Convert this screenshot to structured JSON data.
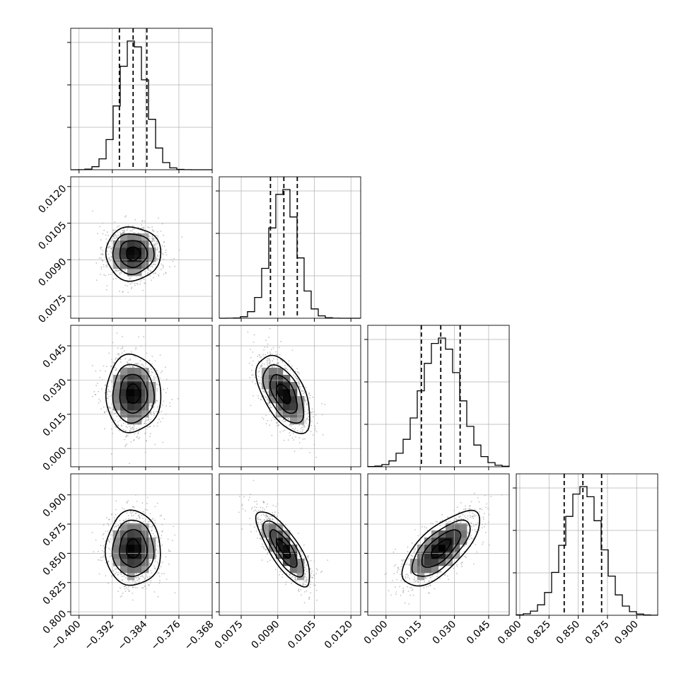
{
  "chart_data": {
    "type": "corner",
    "grid": true,
    "parameters": [
      {
        "mean": -0.387,
        "sd": 0.0033,
        "quantiles": [
          -0.3903,
          -0.387,
          -0.3837
        ],
        "range": [
          -0.402,
          -0.368
        ],
        "ticks": [
          -0.4,
          -0.392,
          -0.384,
          -0.376,
          -0.368
        ],
        "tick_labels": [
          "−0.400",
          "−0.392",
          "−0.384",
          "−0.376",
          "−0.368"
        ]
      },
      {
        "mean": 0.00925,
        "sd": 0.00055,
        "quantiles": [
          0.0087,
          0.00925,
          0.0098
        ],
        "range": [
          0.0066,
          0.0124
        ],
        "ticks": [
          0.0075,
          0.009,
          0.0105,
          0.012
        ],
        "tick_labels": [
          "0.0075",
          "0.0090",
          "0.0105",
          "0.0120"
        ]
      },
      {
        "mean": 0.024,
        "sd": 0.0085,
        "quantiles": [
          0.0155,
          0.024,
          0.0325
        ],
        "range": [
          -0.008,
          0.054
        ],
        "ticks": [
          0.0,
          0.015,
          0.03,
          0.045
        ],
        "tick_labels": [
          "0.000",
          "0.015",
          "0.030",
          "0.045"
        ]
      },
      {
        "mean": 0.854,
        "sd": 0.016,
        "quantiles": [
          0.838,
          0.854,
          0.87
        ],
        "range": [
          0.797,
          0.918
        ],
        "ticks": [
          0.8,
          0.825,
          0.85,
          0.875,
          0.9
        ],
        "tick_labels": [
          "0.800",
          "0.825",
          "0.850",
          "0.875",
          "0.900"
        ]
      }
    ],
    "correlations": [
      {
        "pair": [
          1,
          0
        ],
        "rho": 0.0
      },
      {
        "pair": [
          2,
          0
        ],
        "rho": 0.0
      },
      {
        "pair": [
          2,
          1
        ],
        "rho": -0.55
      },
      {
        "pair": [
          3,
          0
        ],
        "rho": 0.0
      },
      {
        "pair": [
          3,
          1
        ],
        "rho": -0.78
      },
      {
        "pair": [
          3,
          2
        ],
        "rho": 0.7
      }
    ]
  }
}
